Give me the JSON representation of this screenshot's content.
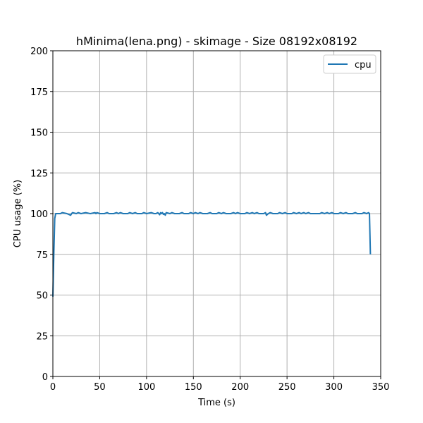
{
  "chart_data": {
    "type": "line",
    "title": "hMinima(lena.png) - skimage - Size 08192x08192",
    "xlabel": "Time (s)",
    "ylabel": "CPU usage (%)",
    "xlim": [
      0,
      350
    ],
    "ylim": [
      0,
      200
    ],
    "xticks": [
      0,
      50,
      100,
      150,
      200,
      250,
      300,
      350
    ],
    "yticks": [
      0,
      25,
      50,
      75,
      100,
      125,
      150,
      175,
      200
    ],
    "grid": true,
    "legend_position": "top-right",
    "colors": {
      "cpu": "#1f77b4",
      "grid": "#b0b0b0"
    },
    "series": [
      {
        "name": "cpu",
        "x": [
          0,
          1,
          2,
          3,
          5,
          8,
          10,
          15,
          19,
          20,
          21,
          25,
          27,
          30,
          35,
          40,
          45,
          46,
          47,
          50,
          55,
          58,
          60,
          65,
          68,
          70,
          72,
          75,
          80,
          82,
          85,
          88,
          90,
          95,
          97,
          100,
          105,
          108,
          110,
          112,
          113,
          114,
          115,
          116,
          117,
          118,
          119,
          120,
          121,
          125,
          127,
          130,
          135,
          138,
          140,
          145,
          147,
          150,
          152,
          155,
          157,
          160,
          165,
          168,
          170,
          175,
          177,
          180,
          182,
          185,
          190,
          193,
          195,
          197,
          200,
          205,
          207,
          210,
          213,
          215,
          218,
          220,
          225,
          227,
          228,
          230,
          232,
          235,
          240,
          242,
          245,
          248,
          250,
          255,
          257,
          260,
          263,
          265,
          268,
          270,
          273,
          275,
          280,
          285,
          287,
          290,
          293,
          295,
          298,
          300,
          305,
          307,
          310,
          313,
          315,
          320,
          323,
          325,
          330,
          332,
          335,
          337,
          338,
          339
        ],
        "y": [
          49,
          75,
          97,
          100,
          100,
          100,
          100.6,
          100,
          99,
          100,
          100.6,
          100,
          100.6,
          100,
          100.6,
          100,
          100.6,
          100,
          100.6,
          100,
          100,
          100.6,
          100,
          100,
          100.6,
          100,
          100.6,
          100,
          100,
          100.6,
          100,
          100.6,
          100,
          100,
          100.6,
          100,
          100.6,
          100,
          100,
          100.6,
          100,
          99.3,
          100.6,
          100,
          100.6,
          99.5,
          100,
          99,
          100.6,
          100,
          100.6,
          100,
          100,
          100.6,
          100,
          100,
          100.6,
          100,
          100.6,
          100,
          100.6,
          100,
          100,
          100.6,
          100,
          100,
          100.6,
          100,
          100.6,
          100,
          100,
          100.6,
          100,
          100.6,
          100,
          100,
          100.6,
          100,
          100.6,
          100,
          100.6,
          100,
          100,
          100.6,
          99,
          100,
          100.6,
          100,
          100,
          100.6,
          100,
          100.6,
          100,
          100,
          100.6,
          100,
          100.6,
          100,
          100.6,
          100,
          100.6,
          100,
          100,
          100,
          100.6,
          100,
          100.6,
          100,
          100.6,
          100,
          100,
          100.6,
          100,
          100.6,
          100,
          100,
          100.6,
          100,
          100,
          100.6,
          100,
          100.6,
          100,
          75
        ]
      }
    ]
  }
}
